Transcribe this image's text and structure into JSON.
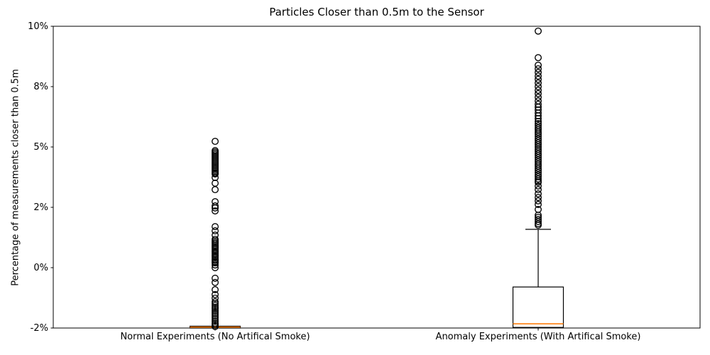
{
  "colors": {
    "background": "#ffffff",
    "box_line": "#000000",
    "median_line": "#ff7f0e",
    "text": "#000000"
  },
  "chart_data": {
    "type": "boxplot",
    "title": "Particles Closer than 0.5m to the Sensor",
    "ylabel": "Percentage of measurements closer than 0.5m",
    "xlabel": "",
    "grid": false,
    "legend": false,
    "ytick_labels": [
      "-2%",
      "0%",
      "2%",
      "5%",
      "8%",
      "10%"
    ],
    "ytick_values": [
      -2,
      0,
      2,
      5,
      8,
      10
    ],
    "categories": [
      "Normal Experiments (No Artifical Smoke)",
      "Anomaly Experiments (With Artifical Smoke)"
    ],
    "series": [
      {
        "name": "Normal Experiments (No Artifical Smoke)",
        "whisker_low": -2.0,
        "q1": -2.0,
        "median": -1.97,
        "q3": -1.94,
        "whisker_high": -1.94,
        "outliers": [
          5.28,
          4.82,
          4.75,
          4.68,
          4.61,
          4.54,
          4.47,
          4.4,
          4.33,
          4.26,
          4.19,
          4.12,
          4.05,
          3.98,
          3.91,
          3.84,
          3.77,
          3.7,
          3.66,
          3.48,
          3.2,
          2.88,
          2.28,
          2.07,
          1.98,
          1.88,
          1.36,
          1.22,
          1.08,
          0.94,
          0.89,
          0.84,
          0.8,
          0.75,
          0.7,
          0.66,
          0.61,
          0.56,
          0.52,
          0.47,
          0.42,
          0.38,
          0.33,
          0.28,
          0.24,
          0.19,
          0.16,
          0.09,
          0.0,
          -0.35,
          -0.49,
          -0.73,
          -0.89,
          -1.01,
          -1.13,
          -1.19,
          -1.25,
          -1.31,
          -1.36,
          -1.42,
          -1.48,
          -1.54,
          -1.6,
          -1.66,
          -1.72,
          -1.78,
          -1.84,
          -1.89,
          -1.95
        ]
      },
      {
        "name": "Anomaly Experiments (With Artifical Smoke)",
        "whisker_low": -1.98,
        "q1": -1.98,
        "median": -1.86,
        "q3": -0.64,
        "whisker_high": 1.27,
        "outliers": [
          9.84,
          8.96,
          8.71,
          8.59,
          8.47,
          8.35,
          8.24,
          8.12,
          8.0,
          7.82,
          7.65,
          7.47,
          7.29,
          7.12,
          6.98,
          6.84,
          6.69,
          6.55,
          6.41,
          6.27,
          6.16,
          6.06,
          5.95,
          5.85,
          5.74,
          5.64,
          5.53,
          5.42,
          5.32,
          5.21,
          5.11,
          5.0,
          4.89,
          4.79,
          4.68,
          4.58,
          4.47,
          4.36,
          4.26,
          4.15,
          4.05,
          3.94,
          3.84,
          3.73,
          3.62,
          3.52,
          3.41,
          3.31,
          3.24,
          3.06,
          2.88,
          2.67,
          2.49,
          2.32,
          2.14,
          1.93,
          1.74,
          1.67,
          1.6,
          1.53,
          1.46,
          1.41
        ]
      }
    ],
    "layout_hints": {
      "ticks_evenly_spaced": true,
      "box_fill": "none",
      "outlier_marker": "open-circle"
    }
  }
}
